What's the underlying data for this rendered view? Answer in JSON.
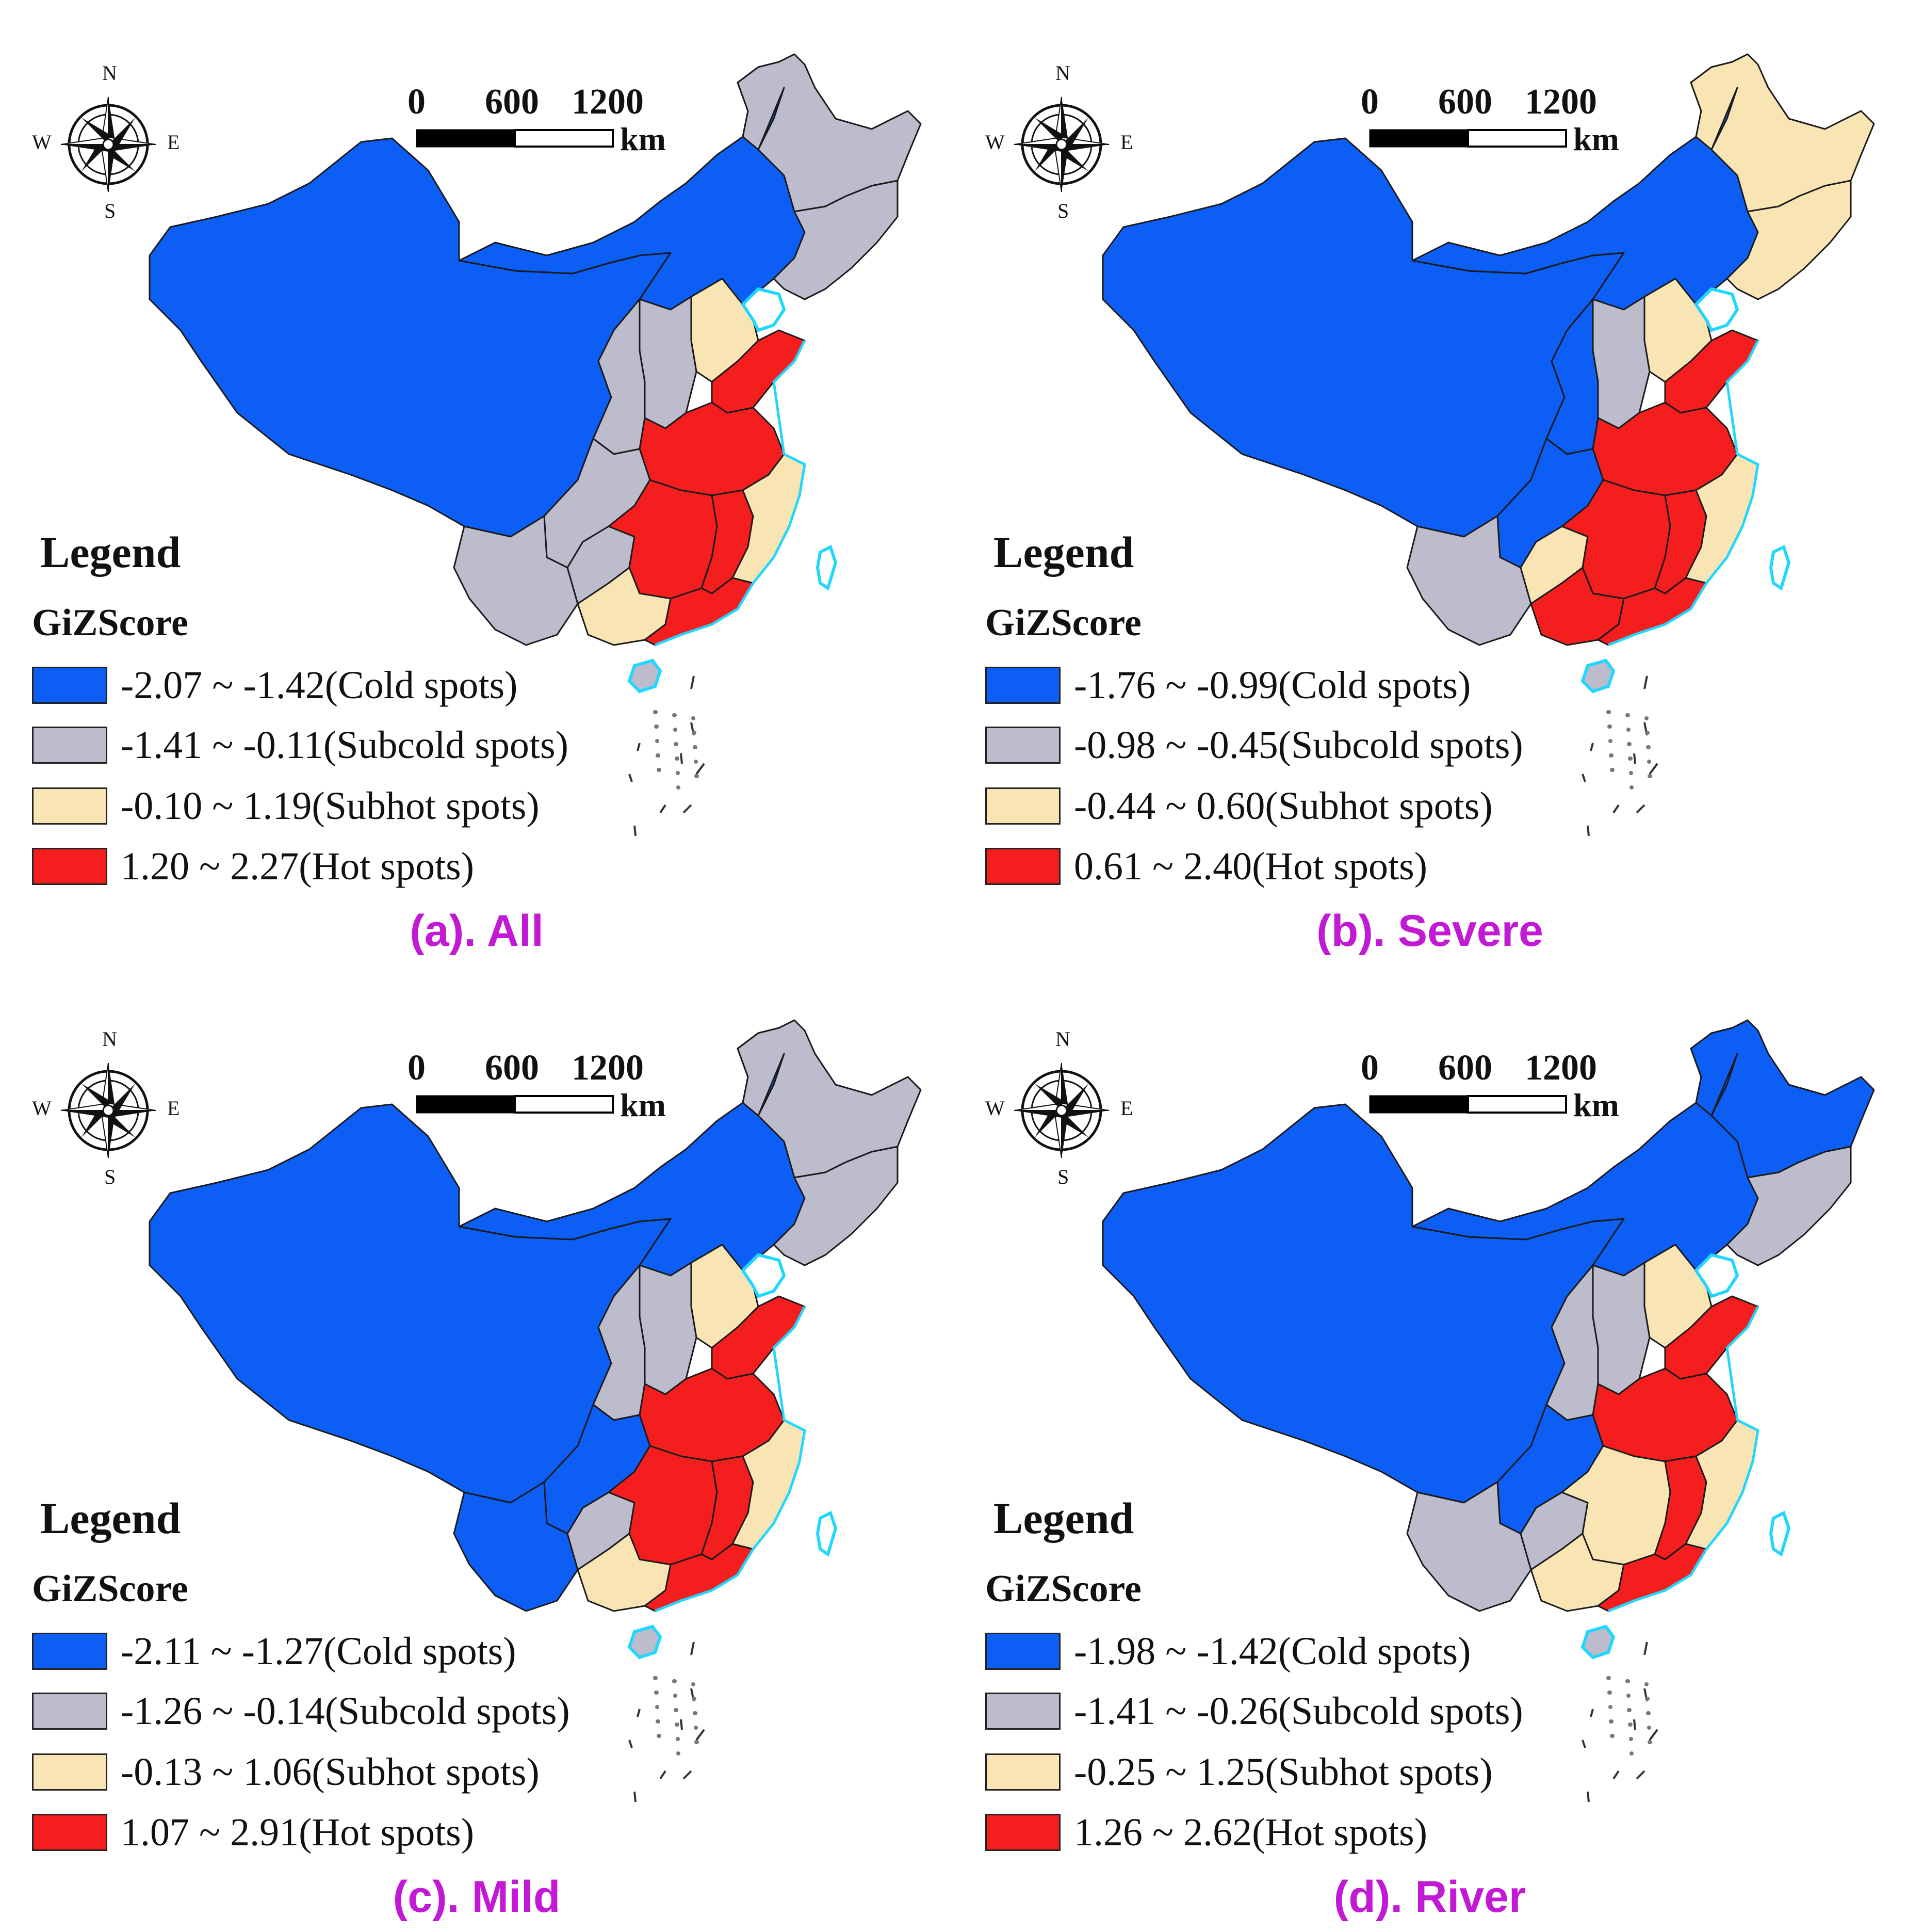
{
  "colors": {
    "cold": "#0d5ef5",
    "subcold": "#bcbccc",
    "subhot": "#f9e4b4",
    "hot": "#f41e1e",
    "caption": "#c21ad4",
    "water": "#22d6ff"
  },
  "compass": {
    "north": "N",
    "south": "S",
    "east": "E",
    "west": "W"
  },
  "scale_bar": {
    "labels": [
      "0",
      "600",
      "1200"
    ],
    "unit": "km"
  },
  "legend_title": "Legend",
  "legend_field": "GiZScore",
  "panels": [
    {
      "caption": "(a). All",
      "classes": [
        {
          "label": "-2.07 ~ -1.42(Cold spots)",
          "class": "cold"
        },
        {
          "label": "-1.41 ~ -0.11(Subcold spots)",
          "class": "subcold"
        },
        {
          "label": "-0.10 ~ 1.19(Subhot spots)",
          "class": "subhot"
        },
        {
          "label": "1.20 ~ 2.27(Hot spots)",
          "class": "hot"
        }
      ],
      "regions": {
        "west": "cold",
        "inner_mongolia": "cold",
        "heilongjiang": "subcold",
        "northeast_south": "subcold",
        "shanxi": "subcold",
        "shaanxi": "subcold",
        "hebei": "subhot",
        "shandong": "hot",
        "henan_anhui": "hot",
        "sichuan_chongqing": "subcold",
        "yunnan": "subcold",
        "guizhou": "subcold",
        "hubei_hunan": "hot",
        "jiangxi": "hot",
        "zhejiang_fujian": "subhot",
        "guangxi": "subhot",
        "guangdong": "hot"
      }
    },
    {
      "caption": "(b). Severe",
      "classes": [
        {
          "label": "-1.76 ~ -0.99(Cold spots)",
          "class": "cold"
        },
        {
          "label": "-0.98 ~ -0.45(Subcold spots)",
          "class": "subcold"
        },
        {
          "label": "-0.44 ~ 0.60(Subhot spots)",
          "class": "subhot"
        },
        {
          "label": "0.61 ~ 2.40(Hot spots)",
          "class": "hot"
        }
      ],
      "regions": {
        "west": "cold",
        "inner_mongolia": "cold",
        "heilongjiang": "subhot",
        "northeast_south": "subhot",
        "shanxi": "subcold",
        "shaanxi": "cold",
        "hebei": "subhot",
        "shandong": "hot",
        "henan_anhui": "hot",
        "sichuan_chongqing": "cold",
        "yunnan": "subcold",
        "guizhou": "subhot",
        "hubei_hunan": "hot",
        "jiangxi": "hot",
        "zhejiang_fujian": "subhot",
        "guangxi": "hot",
        "guangdong": "hot"
      }
    },
    {
      "caption": "(c). Mild",
      "classes": [
        {
          "label": "-2.11 ~ -1.27(Cold spots)",
          "class": "cold"
        },
        {
          "label": "-1.26 ~ -0.14(Subcold spots)",
          "class": "subcold"
        },
        {
          "label": "-0.13 ~ 1.06(Subhot spots)",
          "class": "subhot"
        },
        {
          "label": "1.07 ~ 2.91(Hot spots)",
          "class": "hot"
        }
      ],
      "regions": {
        "west": "cold",
        "inner_mongolia": "cold",
        "heilongjiang": "subcold",
        "northeast_south": "subcold",
        "shanxi": "subcold",
        "shaanxi": "subcold",
        "hebei": "subhot",
        "shandong": "hot",
        "henan_anhui": "hot",
        "sichuan_chongqing": "cold",
        "yunnan": "cold",
        "guizhou": "subcold",
        "hubei_hunan": "hot",
        "jiangxi": "hot",
        "zhejiang_fujian": "subhot",
        "guangxi": "subhot",
        "guangdong": "hot"
      }
    },
    {
      "caption": "(d). River",
      "classes": [
        {
          "label": "-1.98 ~ -1.42(Cold spots)",
          "class": "cold"
        },
        {
          "label": "-1.41 ~ -0.26(Subcold spots)",
          "class": "subcold"
        },
        {
          "label": "-0.25 ~ 1.25(Subhot spots)",
          "class": "subhot"
        },
        {
          "label": "1.26 ~ 2.62(Hot spots)",
          "class": "hot"
        }
      ],
      "regions": {
        "west": "cold",
        "inner_mongolia": "cold",
        "heilongjiang": "cold",
        "northeast_south": "subcold",
        "shanxi": "subcold",
        "shaanxi": "subcold",
        "hebei": "subhot",
        "shandong": "hot",
        "henan_anhui": "hot",
        "sichuan_chongqing": "cold",
        "yunnan": "subcold",
        "guizhou": "subcold",
        "hubei_hunan": "subhot",
        "jiangxi": "hot",
        "zhejiang_fujian": "subhot",
        "guangxi": "subhot",
        "guangdong": "hot"
      }
    }
  ]
}
